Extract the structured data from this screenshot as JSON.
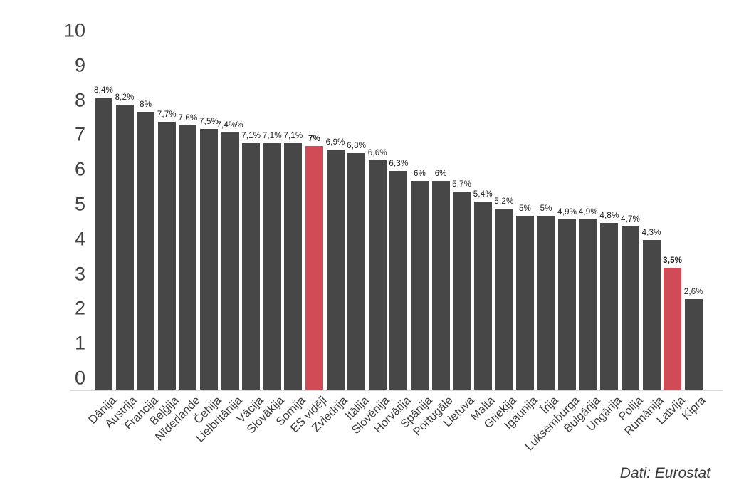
{
  "chart_data": {
    "type": "bar",
    "title": "",
    "xlabel": "",
    "ylabel": "",
    "categories": [
      "Dānija",
      "Austrija",
      "Francija",
      "Beļģija",
      "Nīderlande",
      "Čehija",
      "Lielbritānija",
      "Vācija",
      "Slovākija",
      "Somija",
      "ES vidēji",
      "Zviedrija",
      "Itālija",
      "Slovēnija",
      "Horvātija",
      "Spānija",
      "Portugāle",
      "Lietuva",
      "Malta",
      "Grieķija",
      "Igaunija",
      "Īrija",
      "Luksemburga",
      "Bulgārija",
      "Ungārija",
      "Polija",
      "Rumānija",
      "Latvija",
      "Kipra"
    ],
    "values": [
      8.4,
      8.2,
      8.0,
      7.7,
      7.6,
      7.5,
      7.4,
      7.1,
      7.1,
      7.1,
      7.0,
      6.9,
      6.8,
      6.6,
      6.3,
      6.0,
      6.0,
      5.7,
      5.4,
      5.2,
      5.0,
      5.0,
      4.9,
      4.9,
      4.8,
      4.7,
      4.3,
      3.5,
      2.6
    ],
    "value_labels": [
      "8,4%",
      "8,2%",
      "8%",
      "7,7%",
      "7,6%",
      "7,5%",
      "7,4%%",
      "7,1%",
      "7,1%",
      "7,1%",
      "7%",
      "6,9%",
      "6,8%",
      "6,6%",
      "6,3%",
      "6%",
      "6%",
      "5,7%",
      "5,4%",
      "5,2%",
      "5%",
      "5%",
      "4,9%",
      "4,9%",
      "4,8%",
      "4,7%",
      "4,3%",
      "3,5%",
      "2,6%"
    ],
    "highlight_indices": [
      10,
      27
    ],
    "ylim": [
      0,
      10
    ],
    "yticks": [
      0,
      1,
      2,
      3,
      4,
      5,
      6,
      7,
      8,
      9,
      10
    ],
    "grid": false,
    "legend": "none",
    "source": "Dati: Eurostat",
    "colors": {
      "bar": "#474747",
      "highlight": "#d04b56",
      "axis_tick_text": "#424242",
      "x_label_text": "#3c3c3c",
      "value_label_text": "#1c1c1c",
      "baseline": "#d9d9d9",
      "background": "#ffffff"
    }
  }
}
